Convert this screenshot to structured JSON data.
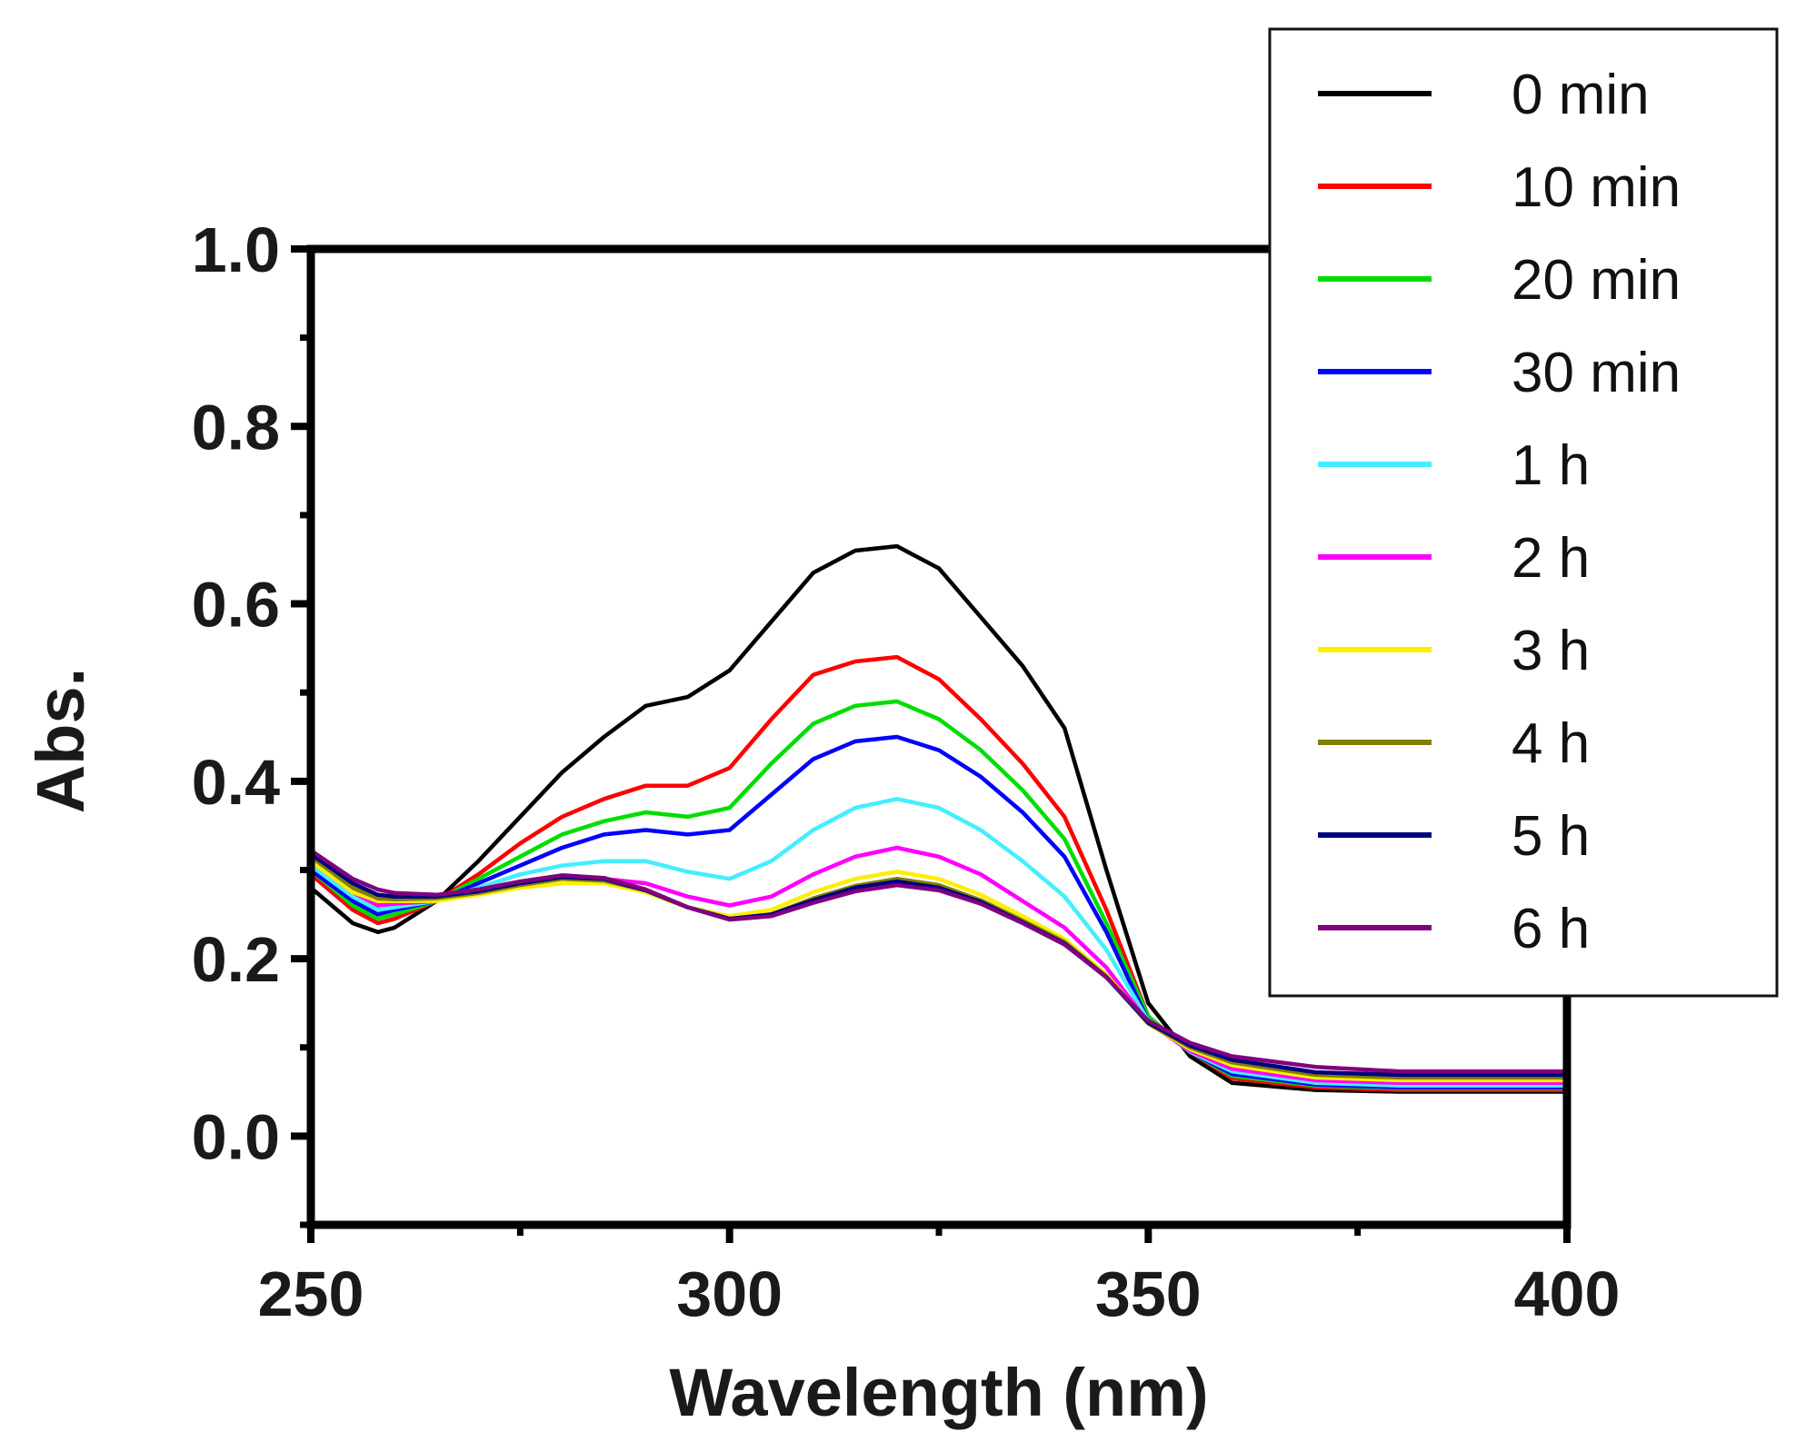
{
  "chart_data": {
    "type": "line",
    "title": "",
    "xlabel": "Wavelength (nm)",
    "ylabel": "Abs.",
    "xlim": [
      250,
      400
    ],
    "ylim": [
      -0.1,
      1.0
    ],
    "x_ticks": [
      250,
      300,
      350,
      400
    ],
    "x_tick_labels": [
      "250",
      "300",
      "350",
      "400"
    ],
    "y_ticks": [
      0.0,
      0.2,
      0.4,
      0.6,
      0.8,
      1.0
    ],
    "y_tick_labels": [
      "0.0",
      "0.2",
      "0.4",
      "0.6",
      "0.8",
      "1.0"
    ],
    "grid": false,
    "legend_position": "top-right",
    "x": [
      250,
      255,
      258,
      260,
      265,
      270,
      275,
      280,
      285,
      290,
      295,
      300,
      305,
      310,
      315,
      320,
      325,
      330,
      335,
      340,
      345,
      350,
      355,
      360,
      370,
      380,
      390,
      400
    ],
    "series": [
      {
        "name": "0 min",
        "color": "#000000",
        "values": [
          0.28,
          0.24,
          0.23,
          0.235,
          0.265,
          0.31,
          0.36,
          0.41,
          0.45,
          0.485,
          0.495,
          0.525,
          0.58,
          0.635,
          0.66,
          0.665,
          0.64,
          0.585,
          0.53,
          0.46,
          0.3,
          0.15,
          0.09,
          0.06,
          0.052,
          0.05,
          0.05,
          0.05
        ]
      },
      {
        "name": "10 min",
        "color": "#ff0000",
        "values": [
          0.295,
          0.255,
          0.24,
          0.245,
          0.265,
          0.295,
          0.33,
          0.36,
          0.38,
          0.395,
          0.395,
          0.415,
          0.47,
          0.52,
          0.535,
          0.54,
          0.515,
          0.47,
          0.42,
          0.36,
          0.255,
          0.135,
          0.095,
          0.065,
          0.055,
          0.052,
          0.052,
          0.052
        ]
      },
      {
        "name": "20 min",
        "color": "#00dd00",
        "values": [
          0.3,
          0.26,
          0.245,
          0.25,
          0.265,
          0.29,
          0.315,
          0.34,
          0.355,
          0.365,
          0.36,
          0.37,
          0.42,
          0.465,
          0.485,
          0.49,
          0.47,
          0.435,
          0.39,
          0.335,
          0.24,
          0.135,
          0.095,
          0.068,
          0.057,
          0.054,
          0.054,
          0.054
        ]
      },
      {
        "name": "30 min",
        "color": "#0000ff",
        "values": [
          0.3,
          0.265,
          0.25,
          0.255,
          0.265,
          0.285,
          0.305,
          0.325,
          0.34,
          0.345,
          0.34,
          0.345,
          0.385,
          0.425,
          0.445,
          0.45,
          0.435,
          0.405,
          0.365,
          0.315,
          0.23,
          0.13,
          0.095,
          0.07,
          0.058,
          0.055,
          0.055,
          0.055
        ]
      },
      {
        "name": "1 h",
        "color": "#44eeff",
        "values": [
          0.305,
          0.27,
          0.255,
          0.258,
          0.265,
          0.28,
          0.295,
          0.305,
          0.31,
          0.31,
          0.298,
          0.29,
          0.31,
          0.345,
          0.37,
          0.38,
          0.37,
          0.345,
          0.31,
          0.27,
          0.21,
          0.13,
          0.095,
          0.073,
          0.06,
          0.057,
          0.057,
          0.057
        ]
      },
      {
        "name": "2 h",
        "color": "#ff00ff",
        "values": [
          0.31,
          0.275,
          0.26,
          0.262,
          0.265,
          0.275,
          0.285,
          0.29,
          0.29,
          0.285,
          0.27,
          0.26,
          0.27,
          0.295,
          0.315,
          0.325,
          0.315,
          0.295,
          0.265,
          0.235,
          0.19,
          0.128,
          0.096,
          0.076,
          0.063,
          0.06,
          0.06,
          0.06
        ]
      },
      {
        "name": "3 h",
        "color": "#ffee00",
        "values": [
          0.31,
          0.275,
          0.265,
          0.265,
          0.265,
          0.272,
          0.28,
          0.285,
          0.285,
          0.275,
          0.258,
          0.248,
          0.255,
          0.275,
          0.29,
          0.298,
          0.29,
          0.272,
          0.248,
          0.222,
          0.182,
          0.127,
          0.098,
          0.08,
          0.066,
          0.063,
          0.063,
          0.063
        ]
      },
      {
        "name": "4 h",
        "color": "#808000",
        "values": [
          0.315,
          0.28,
          0.268,
          0.267,
          0.268,
          0.274,
          0.283,
          0.29,
          0.288,
          0.277,
          0.258,
          0.245,
          0.25,
          0.268,
          0.282,
          0.29,
          0.283,
          0.266,
          0.243,
          0.219,
          0.18,
          0.127,
          0.1,
          0.083,
          0.069,
          0.066,
          0.066,
          0.066
        ]
      },
      {
        "name": "5 h",
        "color": "#000080",
        "values": [
          0.318,
          0.285,
          0.272,
          0.27,
          0.27,
          0.276,
          0.285,
          0.292,
          0.29,
          0.277,
          0.258,
          0.245,
          0.25,
          0.266,
          0.28,
          0.287,
          0.28,
          0.264,
          0.241,
          0.217,
          0.179,
          0.128,
          0.102,
          0.086,
          0.072,
          0.069,
          0.069,
          0.069
        ]
      },
      {
        "name": "6 h",
        "color": "#800080",
        "values": [
          0.322,
          0.29,
          0.278,
          0.274,
          0.272,
          0.278,
          0.287,
          0.294,
          0.291,
          0.278,
          0.258,
          0.244,
          0.248,
          0.263,
          0.276,
          0.283,
          0.277,
          0.262,
          0.24,
          0.216,
          0.179,
          0.13,
          0.105,
          0.09,
          0.078,
          0.073,
          0.073,
          0.073
        ]
      }
    ]
  }
}
